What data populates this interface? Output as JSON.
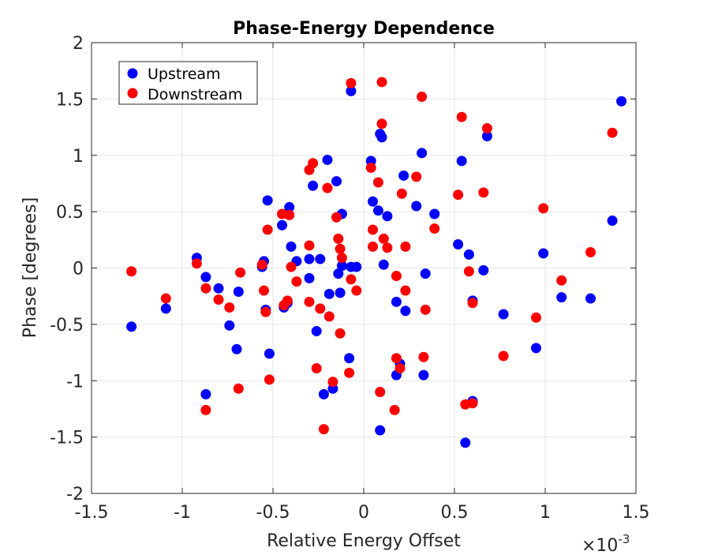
{
  "chart_data": {
    "type": "scatter",
    "title": "Phase-Energy Dependence",
    "xlabel": "Relative Energy Offset",
    "ylabel": "Phase [degrees]",
    "x_exponent_label": "×10",
    "x_exponent_power": "-3",
    "x_scale_factor": 0.001,
    "xlim": [
      -1.5,
      1.5
    ],
    "ylim": [
      -2,
      2
    ],
    "xticks": [
      -1.5,
      -1,
      -0.5,
      0,
      0.5,
      1,
      1.5
    ],
    "xtick_labels": [
      "-1.5",
      "-1",
      "-0.5",
      "0",
      "0.5",
      "1",
      "1.5"
    ],
    "yticks": [
      -2,
      -1.5,
      -1,
      -0.5,
      0,
      0.5,
      1,
      1.5,
      2
    ],
    "ytick_labels": [
      "-2",
      "-1.5",
      "-1",
      "-0.5",
      "0",
      "0.5",
      "1",
      "1.5",
      "2"
    ],
    "grid": true,
    "legend_position": "top-left",
    "series": [
      {
        "name": "Upstream",
        "color": "#0000ff",
        "points": [
          [
            -1.28,
            -0.52
          ],
          [
            -1.09,
            -0.36
          ],
          [
            -0.92,
            0.09
          ],
          [
            -0.87,
            -0.08
          ],
          [
            -0.87,
            -1.12
          ],
          [
            -0.8,
            -0.18
          ],
          [
            -0.74,
            -0.51
          ],
          [
            -0.7,
            -0.72
          ],
          [
            -0.69,
            -0.21
          ],
          [
            -0.56,
            0.01
          ],
          [
            -0.55,
            0.06
          ],
          [
            -0.54,
            -0.37
          ],
          [
            -0.53,
            0.6
          ],
          [
            -0.52,
            -0.76
          ],
          [
            -0.45,
            0.38
          ],
          [
            -0.44,
            -0.35
          ],
          [
            -0.42,
            -0.31
          ],
          [
            -0.41,
            0.54
          ],
          [
            -0.4,
            0.19
          ],
          [
            -0.37,
            0.06
          ],
          [
            -0.3,
            -0.09
          ],
          [
            -0.3,
            0.08
          ],
          [
            -0.28,
            0.73
          ],
          [
            -0.26,
            -0.56
          ],
          [
            -0.24,
            0.08
          ],
          [
            -0.22,
            -1.12
          ],
          [
            -0.2,
            0.96
          ],
          [
            -0.19,
            -0.23
          ],
          [
            -0.17,
            -1.07
          ],
          [
            -0.15,
            0.77
          ],
          [
            -0.14,
            -0.05
          ],
          [
            -0.13,
            -0.22
          ],
          [
            -0.12,
            0.48
          ],
          [
            -0.12,
            0.02
          ],
          [
            -0.08,
            -0.8
          ],
          [
            -0.07,
            1.57
          ],
          [
            -0.07,
            0.01
          ],
          [
            -0.04,
            0.01
          ],
          [
            0.04,
            0.95
          ],
          [
            0.05,
            0.59
          ],
          [
            0.08,
            0.51
          ],
          [
            0.09,
            -1.44
          ],
          [
            0.09,
            1.19
          ],
          [
            0.1,
            1.16
          ],
          [
            0.11,
            0.03
          ],
          [
            0.13,
            0.46
          ],
          [
            0.18,
            -0.3
          ],
          [
            0.18,
            -0.95
          ],
          [
            0.2,
            -0.85
          ],
          [
            0.22,
            0.82
          ],
          [
            0.23,
            -0.38
          ],
          [
            0.29,
            0.55
          ],
          [
            0.32,
            1.02
          ],
          [
            0.33,
            -0.95
          ],
          [
            0.34,
            -0.05
          ],
          [
            0.39,
            0.48
          ],
          [
            0.52,
            0.21
          ],
          [
            0.54,
            0.95
          ],
          [
            0.56,
            -1.55
          ],
          [
            0.58,
            0.12
          ],
          [
            0.6,
            -0.29
          ],
          [
            0.6,
            -1.18
          ],
          [
            0.66,
            -0.02
          ],
          [
            0.68,
            1.17
          ],
          [
            0.77,
            -0.41
          ],
          [
            0.95,
            -0.71
          ],
          [
            0.99,
            0.13
          ],
          [
            1.09,
            -0.26
          ],
          [
            1.25,
            -0.27
          ],
          [
            1.37,
            0.42
          ],
          [
            1.42,
            1.48
          ]
        ]
      },
      {
        "name": "Downstream",
        "color": "#ff0000",
        "points": [
          [
            -1.28,
            -0.03
          ],
          [
            -1.09,
            -0.27
          ],
          [
            -0.92,
            0.04
          ],
          [
            -0.87,
            -0.18
          ],
          [
            -0.87,
            -1.26
          ],
          [
            -0.8,
            -0.28
          ],
          [
            -0.74,
            -0.35
          ],
          [
            -0.69,
            -1.07
          ],
          [
            -0.68,
            -0.04
          ],
          [
            -0.56,
            0.03
          ],
          [
            -0.55,
            -0.2
          ],
          [
            -0.54,
            -0.39
          ],
          [
            -0.53,
            0.34
          ],
          [
            -0.52,
            -0.99
          ],
          [
            -0.45,
            0.48
          ],
          [
            -0.44,
            -0.33
          ],
          [
            -0.42,
            -0.29
          ],
          [
            -0.41,
            0.47
          ],
          [
            -0.4,
            0.01
          ],
          [
            -0.37,
            -0.12
          ],
          [
            -0.3,
            -0.3
          ],
          [
            -0.3,
            0.2
          ],
          [
            -0.3,
            0.87
          ],
          [
            -0.28,
            0.93
          ],
          [
            -0.26,
            -0.89
          ],
          [
            -0.24,
            -0.36
          ],
          [
            -0.22,
            -1.43
          ],
          [
            -0.2,
            0.71
          ],
          [
            -0.19,
            -0.43
          ],
          [
            -0.17,
            -1.01
          ],
          [
            -0.15,
            0.45
          ],
          [
            -0.14,
            0.26
          ],
          [
            -0.13,
            -0.58
          ],
          [
            -0.13,
            0.17
          ],
          [
            -0.12,
            0.09
          ],
          [
            -0.08,
            -0.93
          ],
          [
            -0.07,
            1.64
          ],
          [
            -0.07,
            -0.1
          ],
          [
            -0.04,
            -0.2
          ],
          [
            0.04,
            0.89
          ],
          [
            0.05,
            0.34
          ],
          [
            0.05,
            0.19
          ],
          [
            0.08,
            0.76
          ],
          [
            0.09,
            -1.1
          ],
          [
            0.1,
            1.65
          ],
          [
            0.1,
            1.28
          ],
          [
            0.11,
            0.26
          ],
          [
            0.13,
            0.18
          ],
          [
            0.17,
            -1.26
          ],
          [
            0.18,
            -0.07
          ],
          [
            0.18,
            -0.8
          ],
          [
            0.2,
            -0.89
          ],
          [
            0.21,
            0.66
          ],
          [
            0.23,
            0.19
          ],
          [
            0.23,
            -0.2
          ],
          [
            0.29,
            0.81
          ],
          [
            0.32,
            1.52
          ],
          [
            0.33,
            -0.79
          ],
          [
            0.34,
            -0.37
          ],
          [
            0.39,
            0.35
          ],
          [
            0.52,
            0.65
          ],
          [
            0.54,
            1.34
          ],
          [
            0.56,
            -1.21
          ],
          [
            0.58,
            -0.03
          ],
          [
            0.6,
            -0.31
          ],
          [
            0.6,
            -1.2
          ],
          [
            0.66,
            0.67
          ],
          [
            0.68,
            1.24
          ],
          [
            0.77,
            -0.78
          ],
          [
            0.95,
            -0.44
          ],
          [
            0.99,
            0.53
          ],
          [
            1.09,
            -0.11
          ],
          [
            1.25,
            0.14
          ],
          [
            1.37,
            1.2
          ]
        ]
      }
    ]
  }
}
